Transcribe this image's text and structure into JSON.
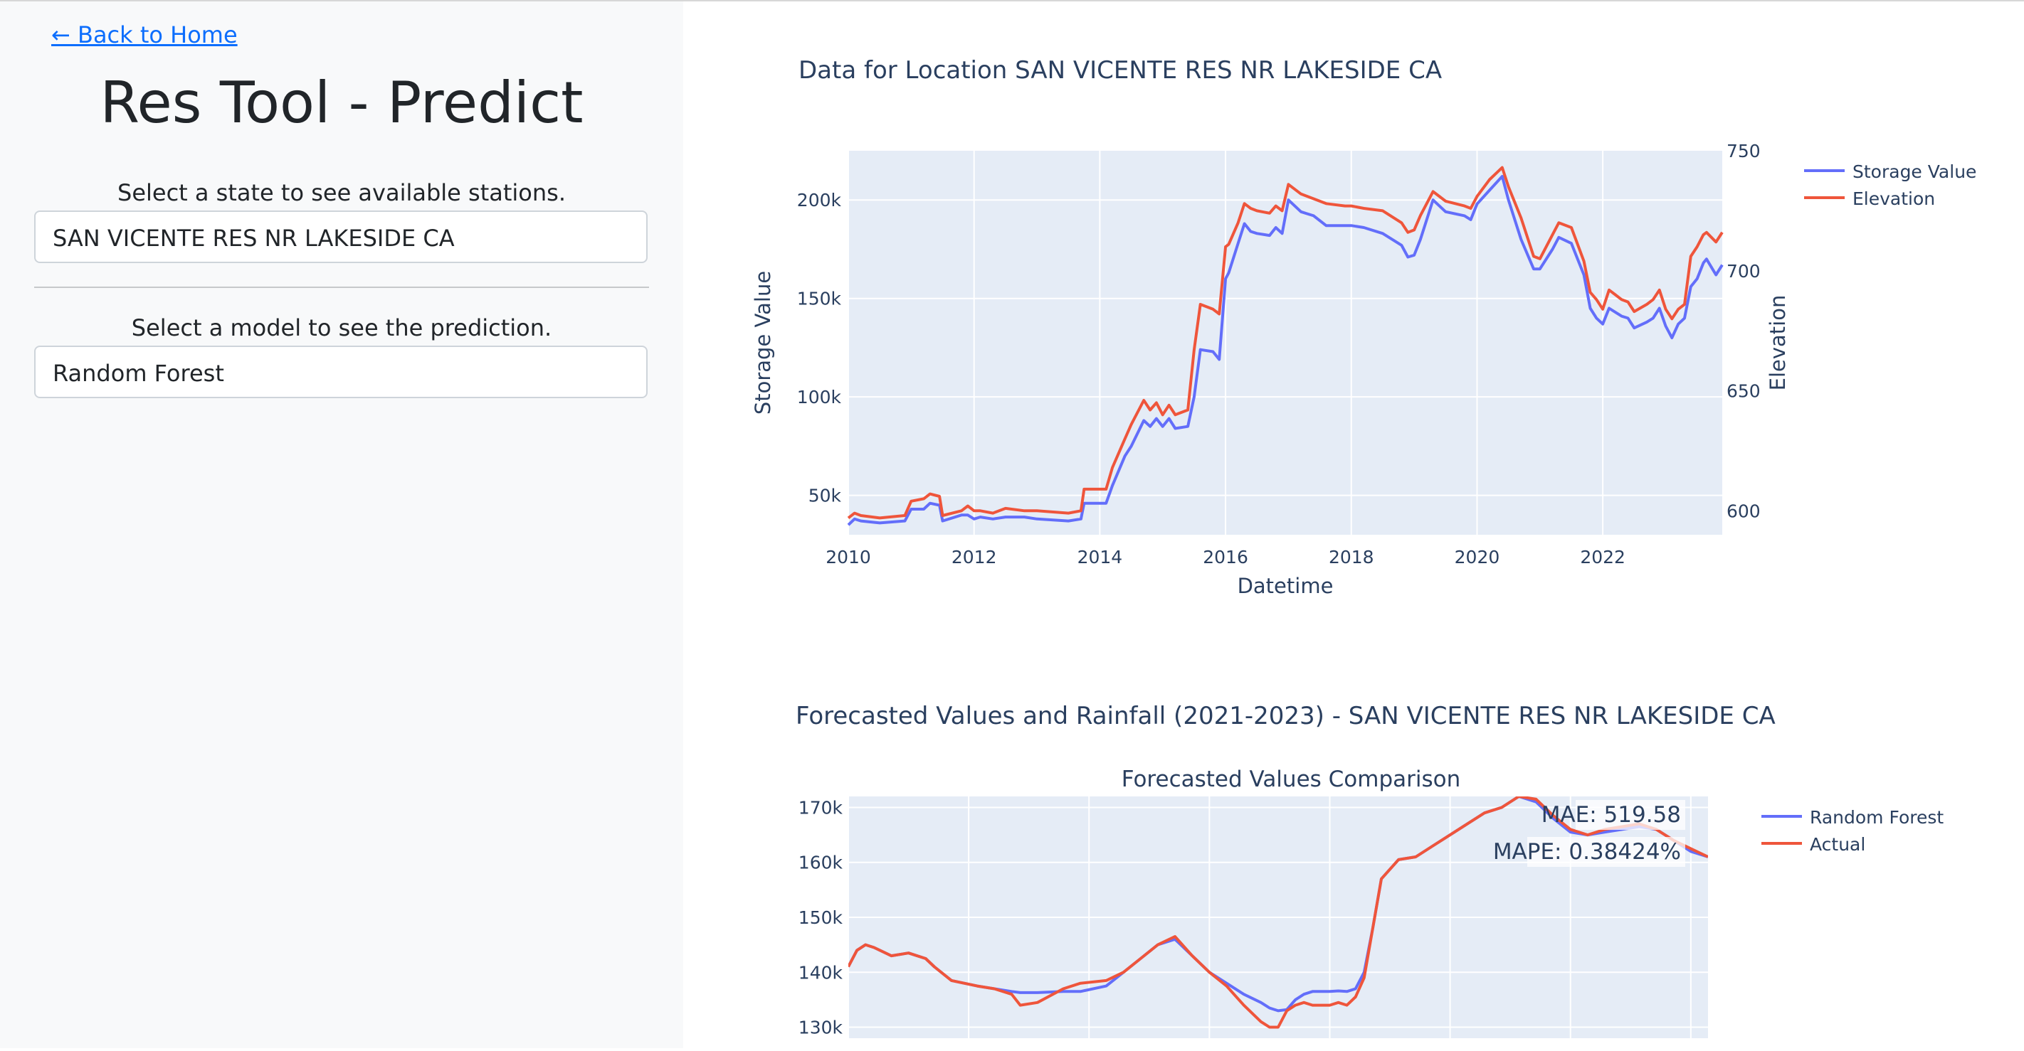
{
  "sidebar": {
    "back_link": "← Back to Home",
    "title": "Res Tool - Predict",
    "state_label": "Select a state to see available stations.",
    "state_value": "SAN VICENTE RES NR LAKESIDE CA",
    "model_label": "Select a model to see the prediction.",
    "model_value": "Random Forest"
  },
  "colors": {
    "series_blue": "#636efa",
    "series_red": "#ef553b",
    "plot_bg": "#e5ecf6",
    "link": "#0d6efd"
  },
  "chart_data": [
    {
      "type": "line",
      "title": "Data for Location SAN VICENTE RES NR LAKESIDE CA",
      "xlabel": "Datetime",
      "ylabel": "Storage Value",
      "y2label": "Elevation",
      "xlim": [
        2010.0,
        2023.9
      ],
      "ylim": [
        30000,
        225000
      ],
      "y2lim": [
        590,
        750
      ],
      "xticks": [
        "2010",
        "2012",
        "2014",
        "2016",
        "2018",
        "2020",
        "2022"
      ],
      "yticks": [
        "50k",
        "100k",
        "150k",
        "200k"
      ],
      "y2ticks": [
        "600",
        "650",
        "700",
        "750"
      ],
      "legend_position": "top-right",
      "series": [
        {
          "name": "Storage Value",
          "axis": "left",
          "x": [
            2010.0,
            2010.1,
            2010.2,
            2010.5,
            2010.9,
            2011.0,
            2011.2,
            2011.3,
            2011.45,
            2011.5,
            2011.8,
            2011.9,
            2012.0,
            2012.1,
            2012.3,
            2012.5,
            2012.8,
            2013.0,
            2013.5,
            2013.7,
            2013.75,
            2014.1,
            2014.2,
            2014.4,
            2014.5,
            2014.7,
            2014.8,
            2014.9,
            2015.0,
            2015.1,
            2015.2,
            2015.4,
            2015.5,
            2015.6,
            2015.8,
            2015.9,
            2016.0,
            2016.05,
            2016.2,
            2016.3,
            2016.4,
            2016.5,
            2016.7,
            2016.8,
            2016.9,
            2017.0,
            2017.2,
            2017.3,
            2017.4,
            2017.6,
            2017.9,
            2018.0,
            2018.2,
            2018.5,
            2018.8,
            2018.9,
            2019.0,
            2019.1,
            2019.3,
            2019.5,
            2019.8,
            2019.9,
            2020.0,
            2020.2,
            2020.4,
            2020.5,
            2020.7,
            2020.9,
            2021.0,
            2021.2,
            2021.3,
            2021.5,
            2021.7,
            2021.8,
            2021.9,
            2022.0,
            2022.1,
            2022.2,
            2022.3,
            2022.4,
            2022.5,
            2022.7,
            2022.8,
            2022.9,
            2023.0,
            2023.1,
            2023.2,
            2023.3,
            2023.4,
            2023.5,
            2023.6,
            2023.65,
            2023.8,
            2023.9
          ],
          "y": [
            35000,
            38000,
            37000,
            36000,
            37000,
            43000,
            43000,
            46000,
            45000,
            37000,
            40000,
            40000,
            38000,
            39000,
            38000,
            39000,
            39000,
            38000,
            37000,
            38000,
            46000,
            46000,
            55000,
            70000,
            75000,
            88000,
            85000,
            89000,
            85000,
            89000,
            84000,
            85000,
            100000,
            124000,
            123000,
            119000,
            160000,
            163000,
            178000,
            188000,
            184000,
            183000,
            182000,
            186000,
            183000,
            200000,
            194000,
            193000,
            192000,
            187000,
            187000,
            187000,
            186000,
            183000,
            177000,
            171000,
            172000,
            180000,
            200000,
            194000,
            192000,
            190000,
            198000,
            205000,
            212000,
            200000,
            180000,
            165000,
            165000,
            175000,
            181000,
            178000,
            162000,
            145000,
            140000,
            137000,
            145000,
            143000,
            141000,
            140000,
            135000,
            138000,
            140000,
            145000,
            136000,
            130000,
            137000,
            140000,
            156000,
            160000,
            168000,
            170000,
            162000,
            167000
          ]
        },
        {
          "name": "Elevation",
          "axis": "right",
          "x": [
            2010.0,
            2010.1,
            2010.2,
            2010.5,
            2010.9,
            2011.0,
            2011.2,
            2011.3,
            2011.45,
            2011.5,
            2011.8,
            2011.9,
            2012.0,
            2012.1,
            2012.3,
            2012.5,
            2012.8,
            2013.0,
            2013.5,
            2013.7,
            2013.75,
            2014.1,
            2014.2,
            2014.4,
            2014.5,
            2014.7,
            2014.8,
            2014.9,
            2015.0,
            2015.1,
            2015.2,
            2015.4,
            2015.5,
            2015.6,
            2015.8,
            2015.9,
            2016.0,
            2016.05,
            2016.2,
            2016.3,
            2016.4,
            2016.5,
            2016.7,
            2016.8,
            2016.9,
            2017.0,
            2017.2,
            2017.3,
            2017.4,
            2017.6,
            2017.9,
            2018.0,
            2018.2,
            2018.5,
            2018.8,
            2018.9,
            2019.0,
            2019.1,
            2019.3,
            2019.5,
            2019.8,
            2019.9,
            2020.0,
            2020.2,
            2020.4,
            2020.5,
            2020.7,
            2020.9,
            2021.0,
            2021.2,
            2021.3,
            2021.5,
            2021.7,
            2021.8,
            2021.9,
            2022.0,
            2022.1,
            2022.2,
            2022.3,
            2022.4,
            2022.5,
            2022.7,
            2022.8,
            2022.9,
            2023.0,
            2023.1,
            2023.2,
            2023.3,
            2023.4,
            2023.5,
            2023.6,
            2023.65,
            2023.8,
            2023.9
          ],
          "y": [
            597,
            599,
            598,
            597,
            598,
            604,
            605,
            607,
            606,
            598,
            600,
            602,
            600,
            600,
            599,
            601,
            600,
            600,
            599,
            600,
            609,
            609,
            618,
            630,
            636,
            646,
            642,
            645,
            640,
            644,
            640,
            642,
            667,
            686,
            684,
            682,
            710,
            711,
            720,
            728,
            726,
            725,
            724,
            727,
            725,
            736,
            732,
            731,
            730,
            728,
            727,
            727,
            726,
            725,
            720,
            716,
            717,
            723,
            733,
            729,
            727,
            726,
            731,
            738,
            743,
            735,
            722,
            706,
            705,
            715,
            720,
            718,
            704,
            691,
            688,
            684,
            692,
            690,
            688,
            687,
            683,
            686,
            688,
            692,
            684,
            680,
            684,
            686,
            706,
            710,
            715,
            716,
            712,
            716
          ]
        }
      ]
    },
    {
      "type": "line",
      "section_title": "Forecasted Values and Rainfall (2021-2023) - SAN VICENTE RES NR LAKESIDE CA",
      "title": "Forecasted Values Comparison",
      "ylim": [
        128000,
        172000
      ],
      "yticks": [
        "130k",
        "140k",
        "150k",
        "160k",
        "170k"
      ],
      "annotations": [
        "MAE: 519.58",
        "MAPE: 0.38424%"
      ],
      "legend_position": "top-right",
      "series": [
        {
          "name": "Random Forest",
          "x": [
            0,
            1,
            2,
            3,
            5,
            7,
            9,
            10,
            12,
            15,
            17,
            19,
            20,
            22,
            25,
            27,
            30,
            32,
            34,
            36,
            38,
            40,
            42,
            44,
            46,
            48,
            49,
            50,
            51,
            52,
            53,
            54,
            55,
            56,
            57,
            58,
            59,
            60,
            61,
            62,
            64,
            66,
            68,
            70,
            72,
            74,
            76,
            78,
            80,
            82,
            84,
            86,
            88,
            90,
            92,
            94,
            96,
            98,
            100
          ],
          "y": [
            141000,
            144000,
            145000,
            144500,
            143000,
            143500,
            142500,
            141000,
            138500,
            137500,
            137000,
            136500,
            136300,
            136300,
            136500,
            136500,
            137500,
            140000,
            142500,
            145000,
            146000,
            143000,
            140000,
            138000,
            136000,
            134500,
            133500,
            133000,
            133200,
            135000,
            136000,
            136500,
            136500,
            136500,
            136600,
            136500,
            137000,
            140000,
            148000,
            157000,
            160500,
            161000,
            163000,
            165000,
            167000,
            169000,
            170000,
            172000,
            171000,
            168000,
            165500,
            165000,
            165500,
            166000,
            166500,
            166000,
            164000,
            162000,
            161000
          ]
        },
        {
          "name": "Actual",
          "x": [
            0,
            1,
            2,
            3,
            5,
            7,
            9,
            10,
            12,
            15,
            17,
            19,
            20,
            22,
            25,
            27,
            30,
            32,
            34,
            36,
            38,
            40,
            42,
            44,
            46,
            48,
            49,
            50,
            51,
            52,
            53,
            54,
            55,
            56,
            57,
            58,
            59,
            60,
            61,
            62,
            64,
            66,
            68,
            70,
            72,
            74,
            76,
            78,
            80,
            82,
            84,
            86,
            88,
            90,
            92,
            94,
            96,
            98,
            100
          ],
          "y": [
            141000,
            144000,
            145000,
            144500,
            143000,
            143500,
            142500,
            141000,
            138500,
            137500,
            137000,
            136000,
            134000,
            134500,
            137000,
            138000,
            138500,
            140000,
            142500,
            145000,
            146500,
            143000,
            140000,
            137500,
            134000,
            131000,
            130000,
            130000,
            133000,
            134000,
            134500,
            134000,
            134000,
            134000,
            134500,
            134000,
            135500,
            139000,
            148000,
            157000,
            160500,
            161000,
            163000,
            165000,
            167000,
            169000,
            170000,
            172000,
            171500,
            168500,
            166000,
            165000,
            166000,
            166500,
            167000,
            166000,
            164000,
            162500,
            161000
          ]
        }
      ]
    }
  ]
}
